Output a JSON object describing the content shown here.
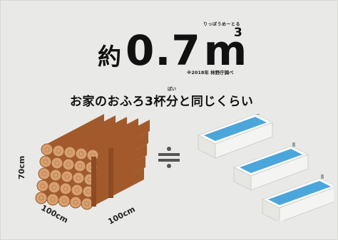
{
  "ruby_reading": "りっぽうめーとる",
  "headline": {
    "prefix": "約",
    "value": "0.7",
    "unit": "m",
    "superscript": "3"
  },
  "source": "※2018年 林野庁調べ",
  "ruby_hai": "ばい",
  "subtitle": "お家のおふろ3杯分と同じくらい",
  "dimensions": {
    "height": "70cm",
    "width": "100cm",
    "depth": "100cm"
  },
  "icons": {
    "logs": "log-stack-icon",
    "approx": "approximately-equal-icon",
    "bathtubs": "bathtub-icon"
  },
  "colors": {
    "log_face": "#d8a070",
    "log_body": "#a25a2c",
    "tub_water": "#4ba6dc",
    "tub_body": "#fbfbfb"
  }
}
